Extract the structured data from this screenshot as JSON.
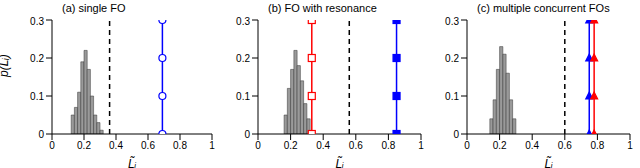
{
  "chart_data": [
    {
      "type": "histogram",
      "title": "(a) single FO",
      "x_label": "L̃ᵢ",
      "y_label": "p(L̃ᵢ)",
      "xlim": [
        0,
        1
      ],
      "xticks": [
        0,
        0.2,
        0.4,
        0.6,
        0.8,
        1
      ],
      "ylim": [
        0,
        0.3
      ],
      "yticks": [
        0,
        0.1,
        0.2,
        0.3
      ],
      "series": [
        {
          "type": "histogram",
          "color": "#9a9a9a",
          "bins": [
            0.12,
            0.14,
            0.16,
            0.18,
            0.2,
            0.22,
            0.24,
            0.26,
            0.28,
            0.3,
            0.32
          ],
          "values": [
            0.05,
            0.07,
            0.11,
            0.19,
            0.22,
            0.17,
            0.1,
            0.05,
            0.03,
            0.01
          ]
        },
        {
          "type": "line",
          "color": "#000000",
          "line_style": "dashed",
          "x": [
            0.36,
            0.36
          ],
          "values": [
            0,
            0.3
          ]
        },
        {
          "type": "line",
          "color": "#0000ff",
          "marker": "open_circle",
          "x": [
            0.69,
            0.69,
            0.69,
            0.69
          ],
          "values": [
            0,
            0.1,
            0.2,
            0.3
          ]
        }
      ]
    },
    {
      "type": "histogram",
      "title": "(b) FO with resonance",
      "x_label": "L̃ᵢ",
      "xlim": [
        0,
        1
      ],
      "xticks": [
        0,
        0.2,
        0.4,
        0.6,
        0.8,
        1
      ],
      "ylim": [
        0,
        0.3
      ],
      "yticks": [
        0,
        0.1,
        0.2,
        0.3
      ],
      "series": [
        {
          "type": "histogram",
          "color": "#9a9a9a",
          "bins": [
            0.16,
            0.18,
            0.2,
            0.22,
            0.24,
            0.26,
            0.28,
            0.3,
            0.32
          ],
          "values": [
            0.05,
            0.12,
            0.17,
            0.22,
            0.18,
            0.14,
            0.08,
            0.04
          ]
        },
        {
          "type": "line",
          "color": "#000000",
          "line_style": "dashed",
          "x": [
            0.56,
            0.56
          ],
          "values": [
            0,
            0.3
          ]
        },
        {
          "type": "line",
          "color": "#ff0000",
          "marker": "open_square",
          "x": [
            0.33,
            0.33,
            0.33,
            0.33
          ],
          "values": [
            0,
            0.1,
            0.2,
            0.3
          ]
        },
        {
          "type": "line",
          "color": "#0000ff",
          "marker": "square",
          "x": [
            0.85,
            0.85,
            0.85,
            0.85
          ],
          "values": [
            0,
            0.1,
            0.2,
            0.3
          ]
        }
      ]
    },
    {
      "type": "histogram",
      "title": "(c) multiple concurrent FOs",
      "x_label": "L̃ᵢ",
      "xlim": [
        0,
        1
      ],
      "xticks": [
        0,
        0.2,
        0.4,
        0.6,
        0.8,
        1
      ],
      "ylim": [
        0,
        0.3
      ],
      "yticks": [
        0,
        0.1,
        0.2,
        0.3
      ],
      "series": [
        {
          "type": "histogram",
          "color": "#9a9a9a",
          "bins": [
            0.14,
            0.16,
            0.18,
            0.2,
            0.22,
            0.24,
            0.26,
            0.28,
            0.3
          ],
          "values": [
            0.04,
            0.09,
            0.17,
            0.23,
            0.21,
            0.16,
            0.09,
            0.04
          ]
        },
        {
          "type": "line",
          "color": "#000000",
          "line_style": "dashed",
          "x": [
            0.6,
            0.6
          ],
          "values": [
            0,
            0.3
          ]
        },
        {
          "type": "line",
          "color": "#0000ff",
          "marker": "triangle",
          "x": [
            0.75,
            0.75,
            0.75,
            0.75
          ],
          "values": [
            0,
            0.1,
            0.2,
            0.3
          ]
        },
        {
          "type": "line",
          "color": "#ff0000",
          "marker": "triangle",
          "x": [
            0.78,
            0.78,
            0.78,
            0.78
          ],
          "values": [
            0,
            0.1,
            0.2,
            0.3
          ]
        }
      ]
    }
  ]
}
